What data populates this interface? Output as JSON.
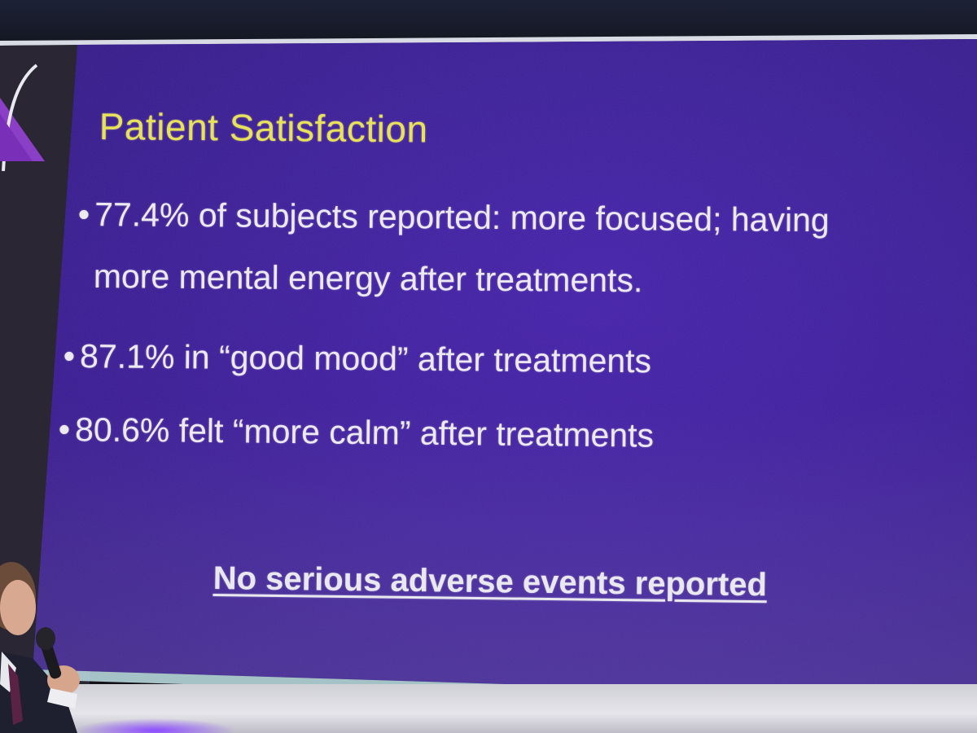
{
  "slide": {
    "title": "Patient Satisfaction",
    "bullets": [
      {
        "symbol": "•",
        "line1": "77.4% of subjects reported: more focused; having",
        "line2": "more mental energy after treatments."
      },
      {
        "symbol": "•",
        "line1": "87.1% in “good mood” after treatments"
      },
      {
        "symbol": "•",
        "line1": "80.6% felt “more calm” after treatments"
      }
    ],
    "footnote": "No serious adverse events reported"
  },
  "colors": {
    "slide_background": "#3a1f9a",
    "title": "#e8e15a",
    "body_text": "#ece9f3"
  },
  "icons": {
    "logo": "logo-fragment-icon",
    "microphone": "microphone-icon"
  }
}
